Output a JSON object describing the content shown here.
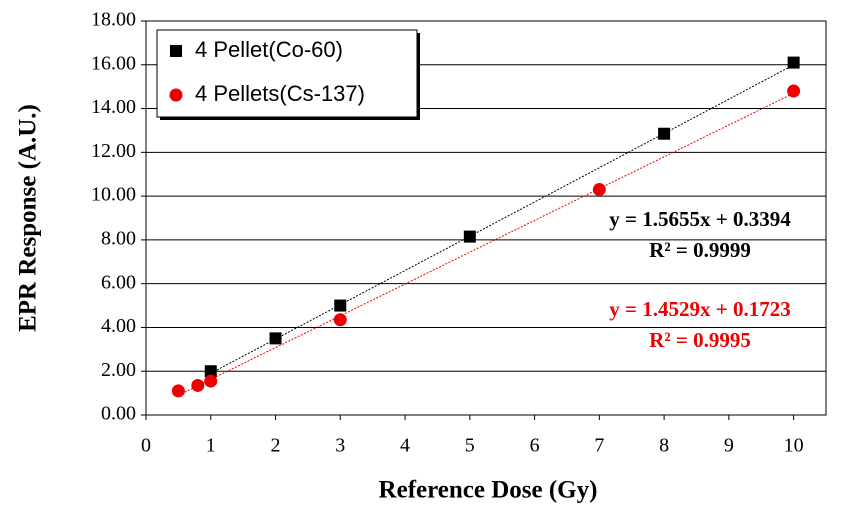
{
  "chart_data": {
    "type": "scatter",
    "x_label": "Reference Dose (Gy)",
    "y_label": "EPR Response (A.U.)",
    "xlim": [
      0,
      10.5
    ],
    "xticks": [
      0,
      1,
      2,
      3,
      4,
      5,
      6,
      7,
      8,
      9,
      10
    ],
    "ylim": [
      0,
      18
    ],
    "yticks": [
      {
        "value": 0,
        "label": "0.00"
      },
      {
        "value": 2,
        "label": "2.00"
      },
      {
        "value": 4,
        "label": "4.00"
      },
      {
        "value": 6,
        "label": "6.00"
      },
      {
        "value": 8,
        "label": "8.00"
      },
      {
        "value": 10,
        "label": "10.00"
      },
      {
        "value": 12,
        "label": "12.00"
      },
      {
        "value": 14,
        "label": "14.00"
      },
      {
        "value": 16,
        "label": "16.00"
      },
      {
        "value": 18,
        "label": "18.00"
      }
    ],
    "grid": true,
    "legend": "top-left",
    "series": [
      {
        "name": "4 Pellet(Co-60)",
        "color": "#000000",
        "marker": "square",
        "x": [
          1,
          2,
          3,
          5,
          8,
          10
        ],
        "values": [
          2.0,
          3.5,
          5.0,
          8.15,
          12.85,
          16.1
        ],
        "slope": 1.5655,
        "intercept": 0.3394,
        "equation": "y = 1.5655x + 0.3394",
        "r_squared": "R² = 0.9999"
      },
      {
        "name": "4 Pellets(Cs-137)",
        "color": "#ee0000",
        "marker": "circle",
        "x": [
          0.5,
          0.8,
          1,
          3,
          7,
          10
        ],
        "values": [
          1.1,
          1.35,
          1.55,
          4.35,
          10.3,
          14.8
        ],
        "slope": 1.4529,
        "intercept": 0.1723,
        "equation": "y = 1.4529x + 0.1723",
        "r_squared": "R² = 0.9995"
      }
    ]
  }
}
